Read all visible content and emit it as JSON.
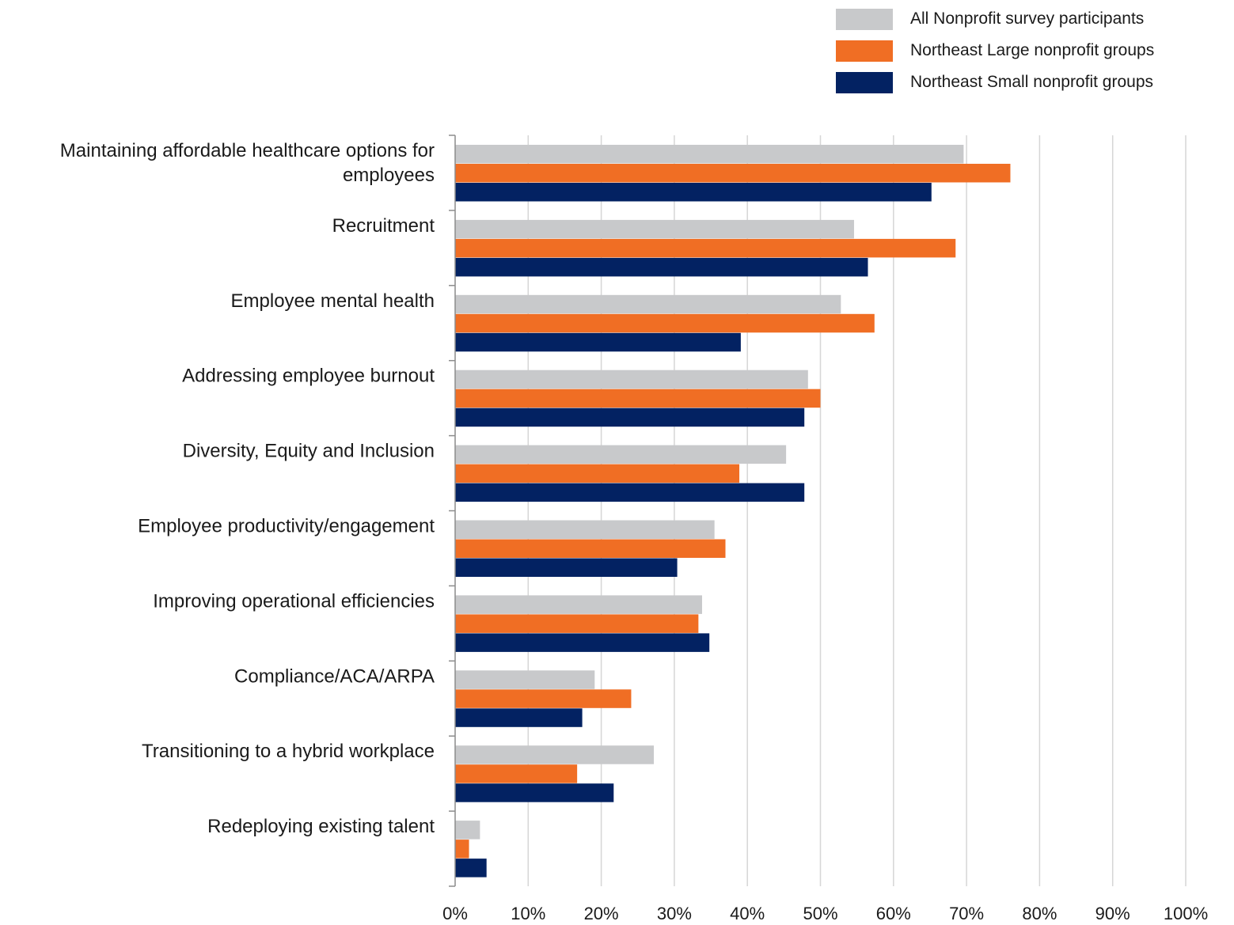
{
  "chart_data": {
    "type": "bar",
    "orientation": "horizontal",
    "title": "",
    "xlabel": "",
    "ylabel": "",
    "xlim": [
      0,
      100
    ],
    "grid": true,
    "legend_position": "top-right",
    "categories": [
      [
        "Maintaining affordable healthcare options for",
        "employees"
      ],
      [
        "Recruitment"
      ],
      [
        "Employee mental health"
      ],
      [
        "Addressing employee burnout"
      ],
      [
        "Diversity, Equity and Inclusion"
      ],
      [
        "Employee productivity/engagement"
      ],
      [
        "Improving operational efficiencies"
      ],
      [
        "Compliance/ACA/ARPA"
      ],
      [
        "Transitioning to a hybrid workplace"
      ],
      [
        "Redeploying existing talent"
      ]
    ],
    "series": [
      {
        "name": "All Nonprofit survey participants",
        "color": "#c8c9cb",
        "values": [
          69.6,
          54.6,
          52.8,
          48.3,
          45.3,
          35.5,
          33.8,
          19.1,
          27.2,
          3.4
        ]
      },
      {
        "name": "Northeast Large nonprofit groups",
        "color": "#f06e24",
        "values": [
          76.0,
          68.5,
          57.4,
          50.0,
          38.9,
          37.0,
          33.3,
          24.1,
          16.7,
          1.9
        ]
      },
      {
        "name": "Northeast Small nonprofit groups",
        "color": "#032262",
        "values": [
          65.2,
          56.5,
          39.1,
          47.8,
          47.8,
          30.4,
          34.8,
          17.4,
          21.7,
          4.3
        ]
      }
    ],
    "x_ticks": [
      "0%",
      "10%",
      "20%",
      "30%",
      "40%",
      "50%",
      "60%",
      "70%",
      "80%",
      "90%",
      "100%"
    ]
  }
}
